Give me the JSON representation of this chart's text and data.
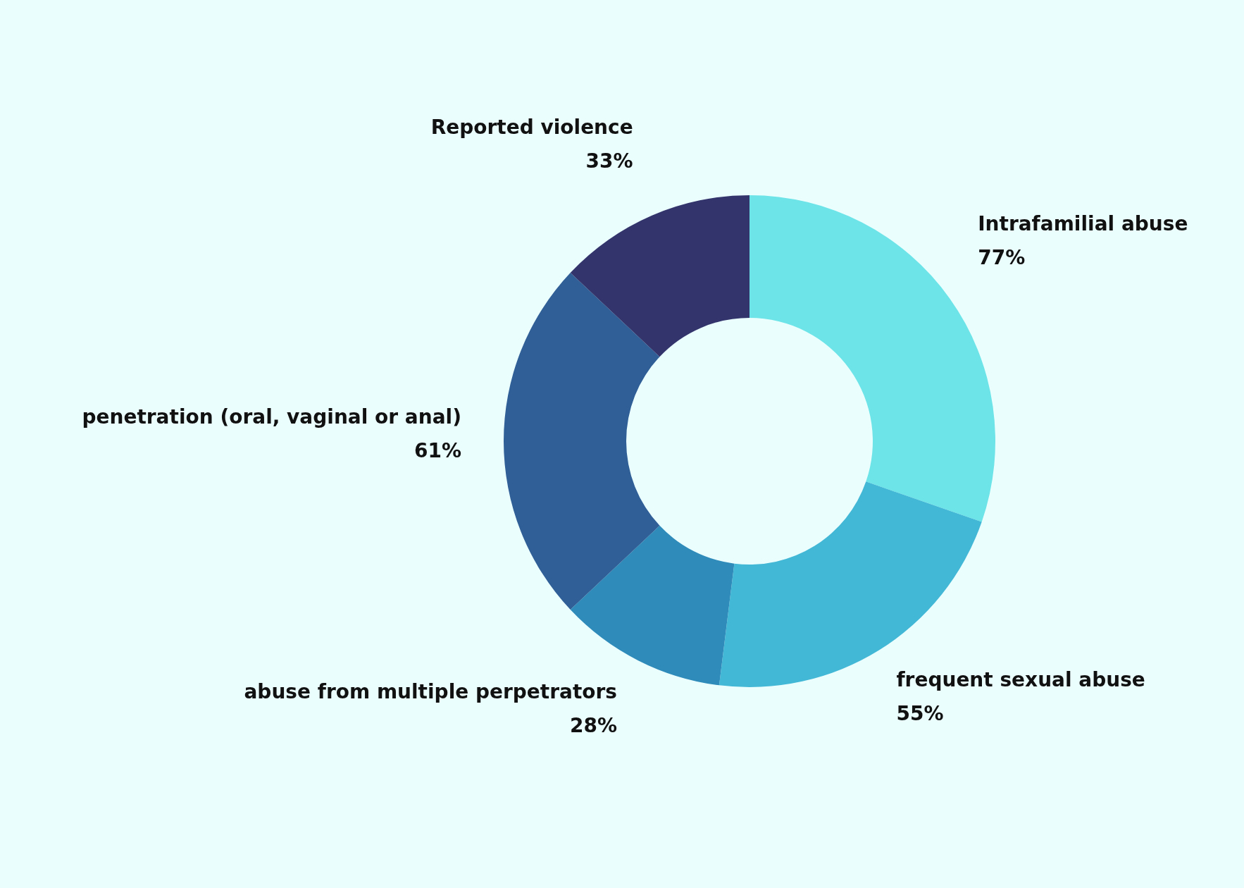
{
  "chart_data": {
    "type": "donut",
    "categories": [
      "Intrafamilial abuse",
      "frequent sexual abuse",
      "abuse from multiple perpetrators",
      "penetration (oral, vaginal or anal)",
      "Reported violence"
    ],
    "values": [
      77,
      55,
      28,
      61,
      33
    ],
    "value_labels": [
      "77%",
      "55%",
      "28%",
      "61%",
      "33%"
    ],
    "colors": [
      "#6ce4e8",
      "#43b7d6",
      "#2e8bba",
      "#2f5f96",
      "#32346b"
    ]
  }
}
